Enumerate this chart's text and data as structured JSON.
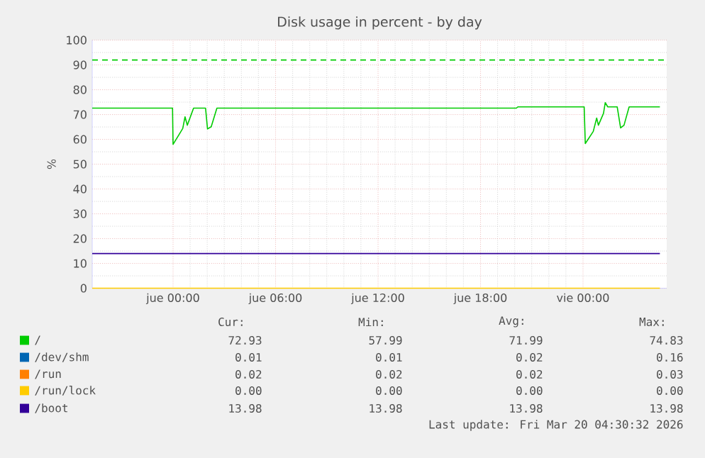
{
  "chart_data": {
    "type": "line",
    "title": "Disk usage in percent - by day",
    "ylabel": "%",
    "xlim": [
      "2026-03-18T19:16",
      "2026-03-20T04:54"
    ],
    "ylim": [
      0,
      100
    ],
    "xticks": [
      {
        "value": "2026-03-19T00:00",
        "label": "jue 00:00"
      },
      {
        "value": "2026-03-19T06:00",
        "label": "jue 06:00"
      },
      {
        "value": "2026-03-19T12:00",
        "label": "jue 12:00"
      },
      {
        "value": "2026-03-19T18:00",
        "label": "jue 18:00"
      },
      {
        "value": "2026-03-20T00:00",
        "label": "vie 00:00"
      }
    ],
    "yticks": [
      0,
      10,
      20,
      30,
      40,
      50,
      60,
      70,
      80,
      90,
      100
    ],
    "grid": true,
    "legend": "bottom",
    "marker": "none",
    "line_style": "solid",
    "series": [
      {
        "name": "/",
        "color": "#00cc00",
        "x": [
          "2026-03-18T19:16",
          "2026-03-18T23:58",
          "2026-03-19T00:00",
          "2026-03-19T00:34",
          "2026-03-19T00:42",
          "2026-03-19T00:50",
          "2026-03-19T01:12",
          "2026-03-19T01:54",
          "2026-03-19T02:01",
          "2026-03-19T02:14",
          "2026-03-19T02:34",
          "2026-03-19T20:06",
          "2026-03-19T20:11",
          "2026-03-20T00:04",
          "2026-03-20T00:08",
          "2026-03-20T00:36",
          "2026-03-20T00:48",
          "2026-03-20T00:54",
          "2026-03-20T01:12",
          "2026-03-20T01:18",
          "2026-03-20T01:27",
          "2026-03-20T02:00",
          "2026-03-20T02:12",
          "2026-03-20T02:24",
          "2026-03-20T02:42",
          "2026-03-20T04:30"
        ],
        "values": [
          72.6,
          72.6,
          58.0,
          64.4,
          69.1,
          65.7,
          72.6,
          72.6,
          64.2,
          65.1,
          72.6,
          72.6,
          73.1,
          73.1,
          58.3,
          63.2,
          68.6,
          65.7,
          70.5,
          74.8,
          73.1,
          73.1,
          64.6,
          65.7,
          73.1,
          73.1
        ]
      },
      {
        "name": "/dev/shm",
        "color": "#0066b3",
        "values": [
          null,
          null
        ]
      },
      {
        "name": "/run",
        "color": "#ff8000",
        "values": [
          null,
          null
        ]
      },
      {
        "name": "/run/lock",
        "color": "#ffcc00",
        "x": [
          "2026-03-18T19:16",
          "2026-03-20T04:30"
        ],
        "values": [
          0,
          0
        ]
      },
      {
        "name": "/boot",
        "color": "#330099",
        "x": [
          "2026-03-18T19:16",
          "2026-03-20T04:30"
        ],
        "values": [
          14,
          14
        ]
      }
    ],
    "ref_lines": [
      {
        "axis": "y",
        "value": 92,
        "color": "#00cc00",
        "line_style": "dashed"
      }
    ],
    "annotations": [
      "Cur:",
      "Min:",
      "Avg:",
      "Max:",
      "72.93",
      "57.99",
      "71.99",
      "74.83",
      "0.01",
      "0.01",
      "0.02",
      "0.16",
      "0.02",
      "0.02",
      "0.02",
      "0.03",
      "0.00",
      "0.00",
      "0.00",
      "0.00",
      "13.98",
      "13.98",
      "13.98",
      "13.98",
      "Last update: Fri Mar 20 04:30:32 2026"
    ]
  }
}
